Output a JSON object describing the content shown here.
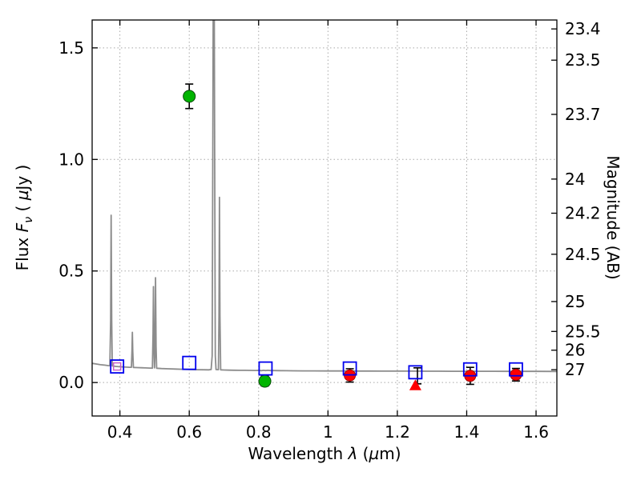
{
  "labels": {
    "ylabel_left": {
      "prefix": "Flux ",
      "symbol": "F",
      "sub": "ν",
      "open": " ( ",
      "mu": "µ",
      "suffix": "Jy )"
    },
    "ylabel_right": "Magnitude (AB)",
    "xlabel": {
      "prefix": "Wavelength ",
      "symbol": "λ",
      "open": " (",
      "mu": "µ",
      "suffix": "m)"
    }
  },
  "chart_data": {
    "type": "line",
    "title": "",
    "xlabel": "Wavelength λ (µm)",
    "ylabel": "Flux Fν (µJy)",
    "ylabel_right": "Magnitude (AB)",
    "xlim": [
      0.32,
      1.66
    ],
    "ylim": [
      -0.15,
      1.625
    ],
    "grid": true,
    "legend": false,
    "x_ticks": [
      0.4,
      0.6,
      0.8,
      1.0,
      1.2,
      1.4,
      1.6
    ],
    "x_tick_labels": [
      "0.4",
      "0.6",
      "0.8",
      "1",
      "1.2",
      "1.4",
      "1.6"
    ],
    "y_ticks": [
      0.0,
      0.5,
      1.0,
      1.5
    ],
    "y_tick_labels": [
      "0.0",
      "0.5",
      "1.0",
      "1.5"
    ],
    "right_ticks": [
      {
        "label": "23.4",
        "flux": 1.585
      },
      {
        "label": "23.5",
        "flux": 1.445
      },
      {
        "label": "23.7",
        "flux": 1.202
      },
      {
        "label": "24",
        "flux": 0.912
      },
      {
        "label": "24.2",
        "flux": 0.759
      },
      {
        "label": "24.5",
        "flux": 0.575
      },
      {
        "label": "25",
        "flux": 0.363
      },
      {
        "label": "25.5",
        "flux": 0.229
      },
      {
        "label": "26",
        "flux": 0.145
      },
      {
        "label": "27",
        "flux": 0.0575
      }
    ],
    "series": [
      {
        "name": "model-spectrum",
        "type": "line",
        "color": "#8c8c8c",
        "width": 1.8,
        "points": [
          [
            0.32,
            0.086
          ],
          [
            0.332,
            0.083
          ],
          [
            0.344,
            0.08
          ],
          [
            0.356,
            0.078
          ],
          [
            0.366,
            0.076
          ],
          [
            0.371,
            0.0755
          ],
          [
            0.3733,
            0.28
          ],
          [
            0.3748,
            0.75
          ],
          [
            0.3763,
            0.28
          ],
          [
            0.378,
            0.0745
          ],
          [
            0.388,
            0.0725
          ],
          [
            0.398,
            0.071
          ],
          [
            0.408,
            0.07
          ],
          [
            0.418,
            0.0692
          ],
          [
            0.428,
            0.0685
          ],
          [
            0.4333,
            0.0683
          ],
          [
            0.4348,
            0.14
          ],
          [
            0.436,
            0.225
          ],
          [
            0.4372,
            0.14
          ],
          [
            0.439,
            0.0678
          ],
          [
            0.45,
            0.067
          ],
          [
            0.462,
            0.0662
          ],
          [
            0.474,
            0.0655
          ],
          [
            0.486,
            0.0648
          ],
          [
            0.4938,
            0.0645
          ],
          [
            0.4955,
            0.22
          ],
          [
            0.4968,
            0.43
          ],
          [
            0.4982,
            0.16
          ],
          [
            0.4998,
            0.066
          ],
          [
            0.5012,
            0.12
          ],
          [
            0.5028,
            0.47
          ],
          [
            0.5044,
            0.16
          ],
          [
            0.506,
            0.064
          ],
          [
            0.52,
            0.0628
          ],
          [
            0.54,
            0.0615
          ],
          [
            0.56,
            0.0605
          ],
          [
            0.58,
            0.0595
          ],
          [
            0.6,
            0.0585
          ],
          [
            0.62,
            0.0578
          ],
          [
            0.64,
            0.0572
          ],
          [
            0.656,
            0.057
          ],
          [
            0.663,
            0.0585
          ],
          [
            0.666,
            0.12
          ],
          [
            0.668,
            1.05
          ],
          [
            0.6695,
            1.95
          ],
          [
            0.6716,
            1.95
          ],
          [
            0.6732,
            1.05
          ],
          [
            0.6752,
            0.12
          ],
          [
            0.6772,
            0.0585
          ],
          [
            0.684,
            0.0575
          ],
          [
            0.6858,
            0.3
          ],
          [
            0.6872,
            0.83
          ],
          [
            0.6886,
            0.3
          ],
          [
            0.6905,
            0.0568
          ],
          [
            0.7,
            0.0562
          ],
          [
            0.715,
            0.0556
          ],
          [
            0.73,
            0.0552
          ],
          [
            0.745,
            0.0549
          ],
          [
            0.76,
            0.0546
          ],
          [
            0.775,
            0.0543
          ],
          [
            0.79,
            0.0541
          ],
          [
            0.802,
            0.0545
          ],
          [
            0.808,
            0.0534
          ],
          [
            0.814,
            0.0549
          ],
          [
            0.82,
            0.0536
          ],
          [
            0.827,
            0.0547
          ],
          [
            0.834,
            0.0538
          ],
          [
            0.845,
            0.0535
          ],
          [
            0.86,
            0.0532
          ],
          [
            0.88,
            0.0529
          ],
          [
            0.9,
            0.0527
          ],
          [
            0.93,
            0.0524
          ],
          [
            0.96,
            0.0522
          ],
          [
            1.0,
            0.052
          ],
          [
            1.04,
            0.0518
          ],
          [
            1.08,
            0.0516
          ],
          [
            1.12,
            0.0514
          ],
          [
            1.16,
            0.0512
          ],
          [
            1.2,
            0.0511
          ],
          [
            1.24,
            0.051
          ],
          [
            1.28,
            0.0508
          ],
          [
            1.32,
            0.0507
          ],
          [
            1.36,
            0.0506
          ],
          [
            1.4,
            0.0505
          ],
          [
            1.44,
            0.0504
          ],
          [
            1.48,
            0.0503
          ],
          [
            1.52,
            0.0502
          ],
          [
            1.56,
            0.0501
          ],
          [
            1.6,
            0.05
          ],
          [
            1.66,
            0.0499
          ]
        ]
      },
      {
        "name": "model-photometry-magenta",
        "type": "scatter",
        "marker": "square-open",
        "size": 9,
        "stroke_width": 1.5,
        "color": "#c864c8",
        "points": [
          {
            "x": 0.392,
            "y": 0.072
          }
        ]
      },
      {
        "name": "observed-flux-green",
        "type": "scatter",
        "marker": "circle",
        "size": 15,
        "color": "#00b400",
        "edge": "#004600",
        "err_color": "#000000",
        "points": [
          {
            "x": 0.6,
            "y": 1.283,
            "err": 0.055
          },
          {
            "x": 0.818,
            "y": 0.006,
            "err": 0.022
          }
        ]
      },
      {
        "name": "observed-flux-red",
        "type": "scatter",
        "marker": "circle",
        "size": 14,
        "color": "#ff0000",
        "edge": "#a00000",
        "err_color": "#000000",
        "points": [
          {
            "x": 1.063,
            "y": 0.032,
            "err": 0.03
          },
          {
            "x": 1.41,
            "y": 0.03,
            "err": 0.038
          },
          {
            "x": 1.542,
            "y": 0.035,
            "err": 0.028
          }
        ]
      },
      {
        "name": "errorbar-only-black",
        "type": "scatter",
        "marker": "none",
        "color": "#000000",
        "err_color": "#000000",
        "points": [
          {
            "x": 1.258,
            "y": 0.03,
            "err": 0.036
          }
        ]
      },
      {
        "name": "upper-limit-red",
        "type": "scatter",
        "marker": "triangle-up",
        "size": 15,
        "color": "#ff0000",
        "points": [
          {
            "x": 1.252,
            "y": -0.013
          }
        ]
      },
      {
        "name": "model-photometry-blue",
        "type": "scatter",
        "marker": "square-open",
        "size": 16,
        "stroke_width": 1.8,
        "color": "#0000ee",
        "points": [
          {
            "x": 0.392,
            "y": 0.072
          },
          {
            "x": 0.6,
            "y": 0.088
          },
          {
            "x": 0.82,
            "y": 0.063
          },
          {
            "x": 1.063,
            "y": 0.063
          },
          {
            "x": 1.252,
            "y": 0.046
          },
          {
            "x": 1.41,
            "y": 0.059
          },
          {
            "x": 1.542,
            "y": 0.059
          }
        ]
      }
    ]
  }
}
